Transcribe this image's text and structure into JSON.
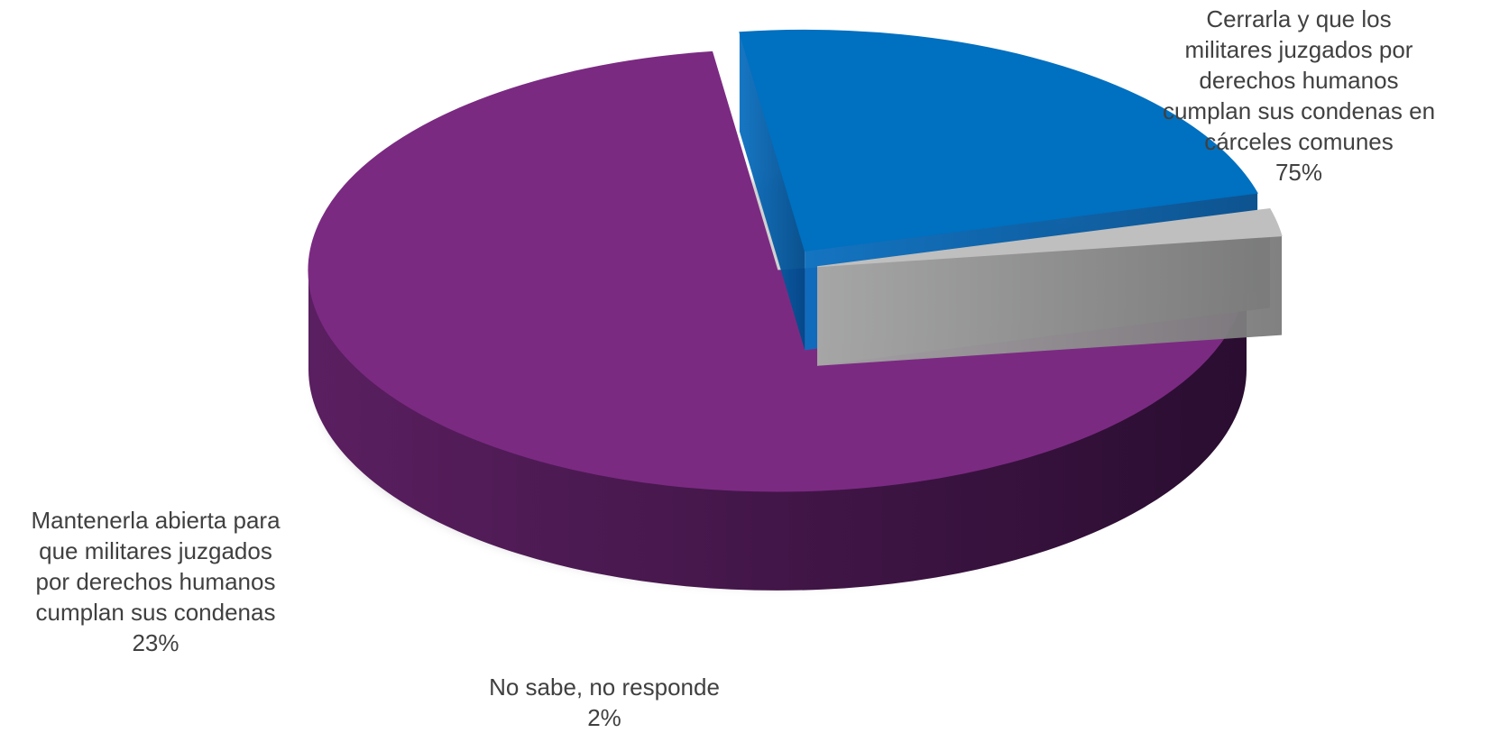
{
  "chart_data": {
    "type": "pie",
    "title": "",
    "slices": [
      {
        "name": "Cerrarla y que los militares juzgados por derechos humanos cumplan sus condenas en cárceles comunes",
        "value": 75,
        "label_lines": [
          "Cerrarla y que los",
          "militares juzgados por",
          "derechos humanos",
          "cumplan sus condenas en",
          "cárceles comunes"
        ],
        "percent_text": "75%",
        "color": "#7B2A82"
      },
      {
        "name": "Mantenerla abierta para que militares juzgados por derechos humanos cumplan sus condenas",
        "value": 23,
        "label_lines": [
          "Mantenerla abierta para",
          "que militares juzgados",
          "por derechos humanos",
          "cumplan sus condenas"
        ],
        "percent_text": "23%",
        "color": "#0070C0"
      },
      {
        "name": "No sabe, no responde",
        "value": 2,
        "label_lines": [
          "No sabe, no responde"
        ],
        "percent_text": "2%",
        "color": "#BFBFBF"
      }
    ],
    "legend": "none",
    "style": "3d-exploded"
  }
}
